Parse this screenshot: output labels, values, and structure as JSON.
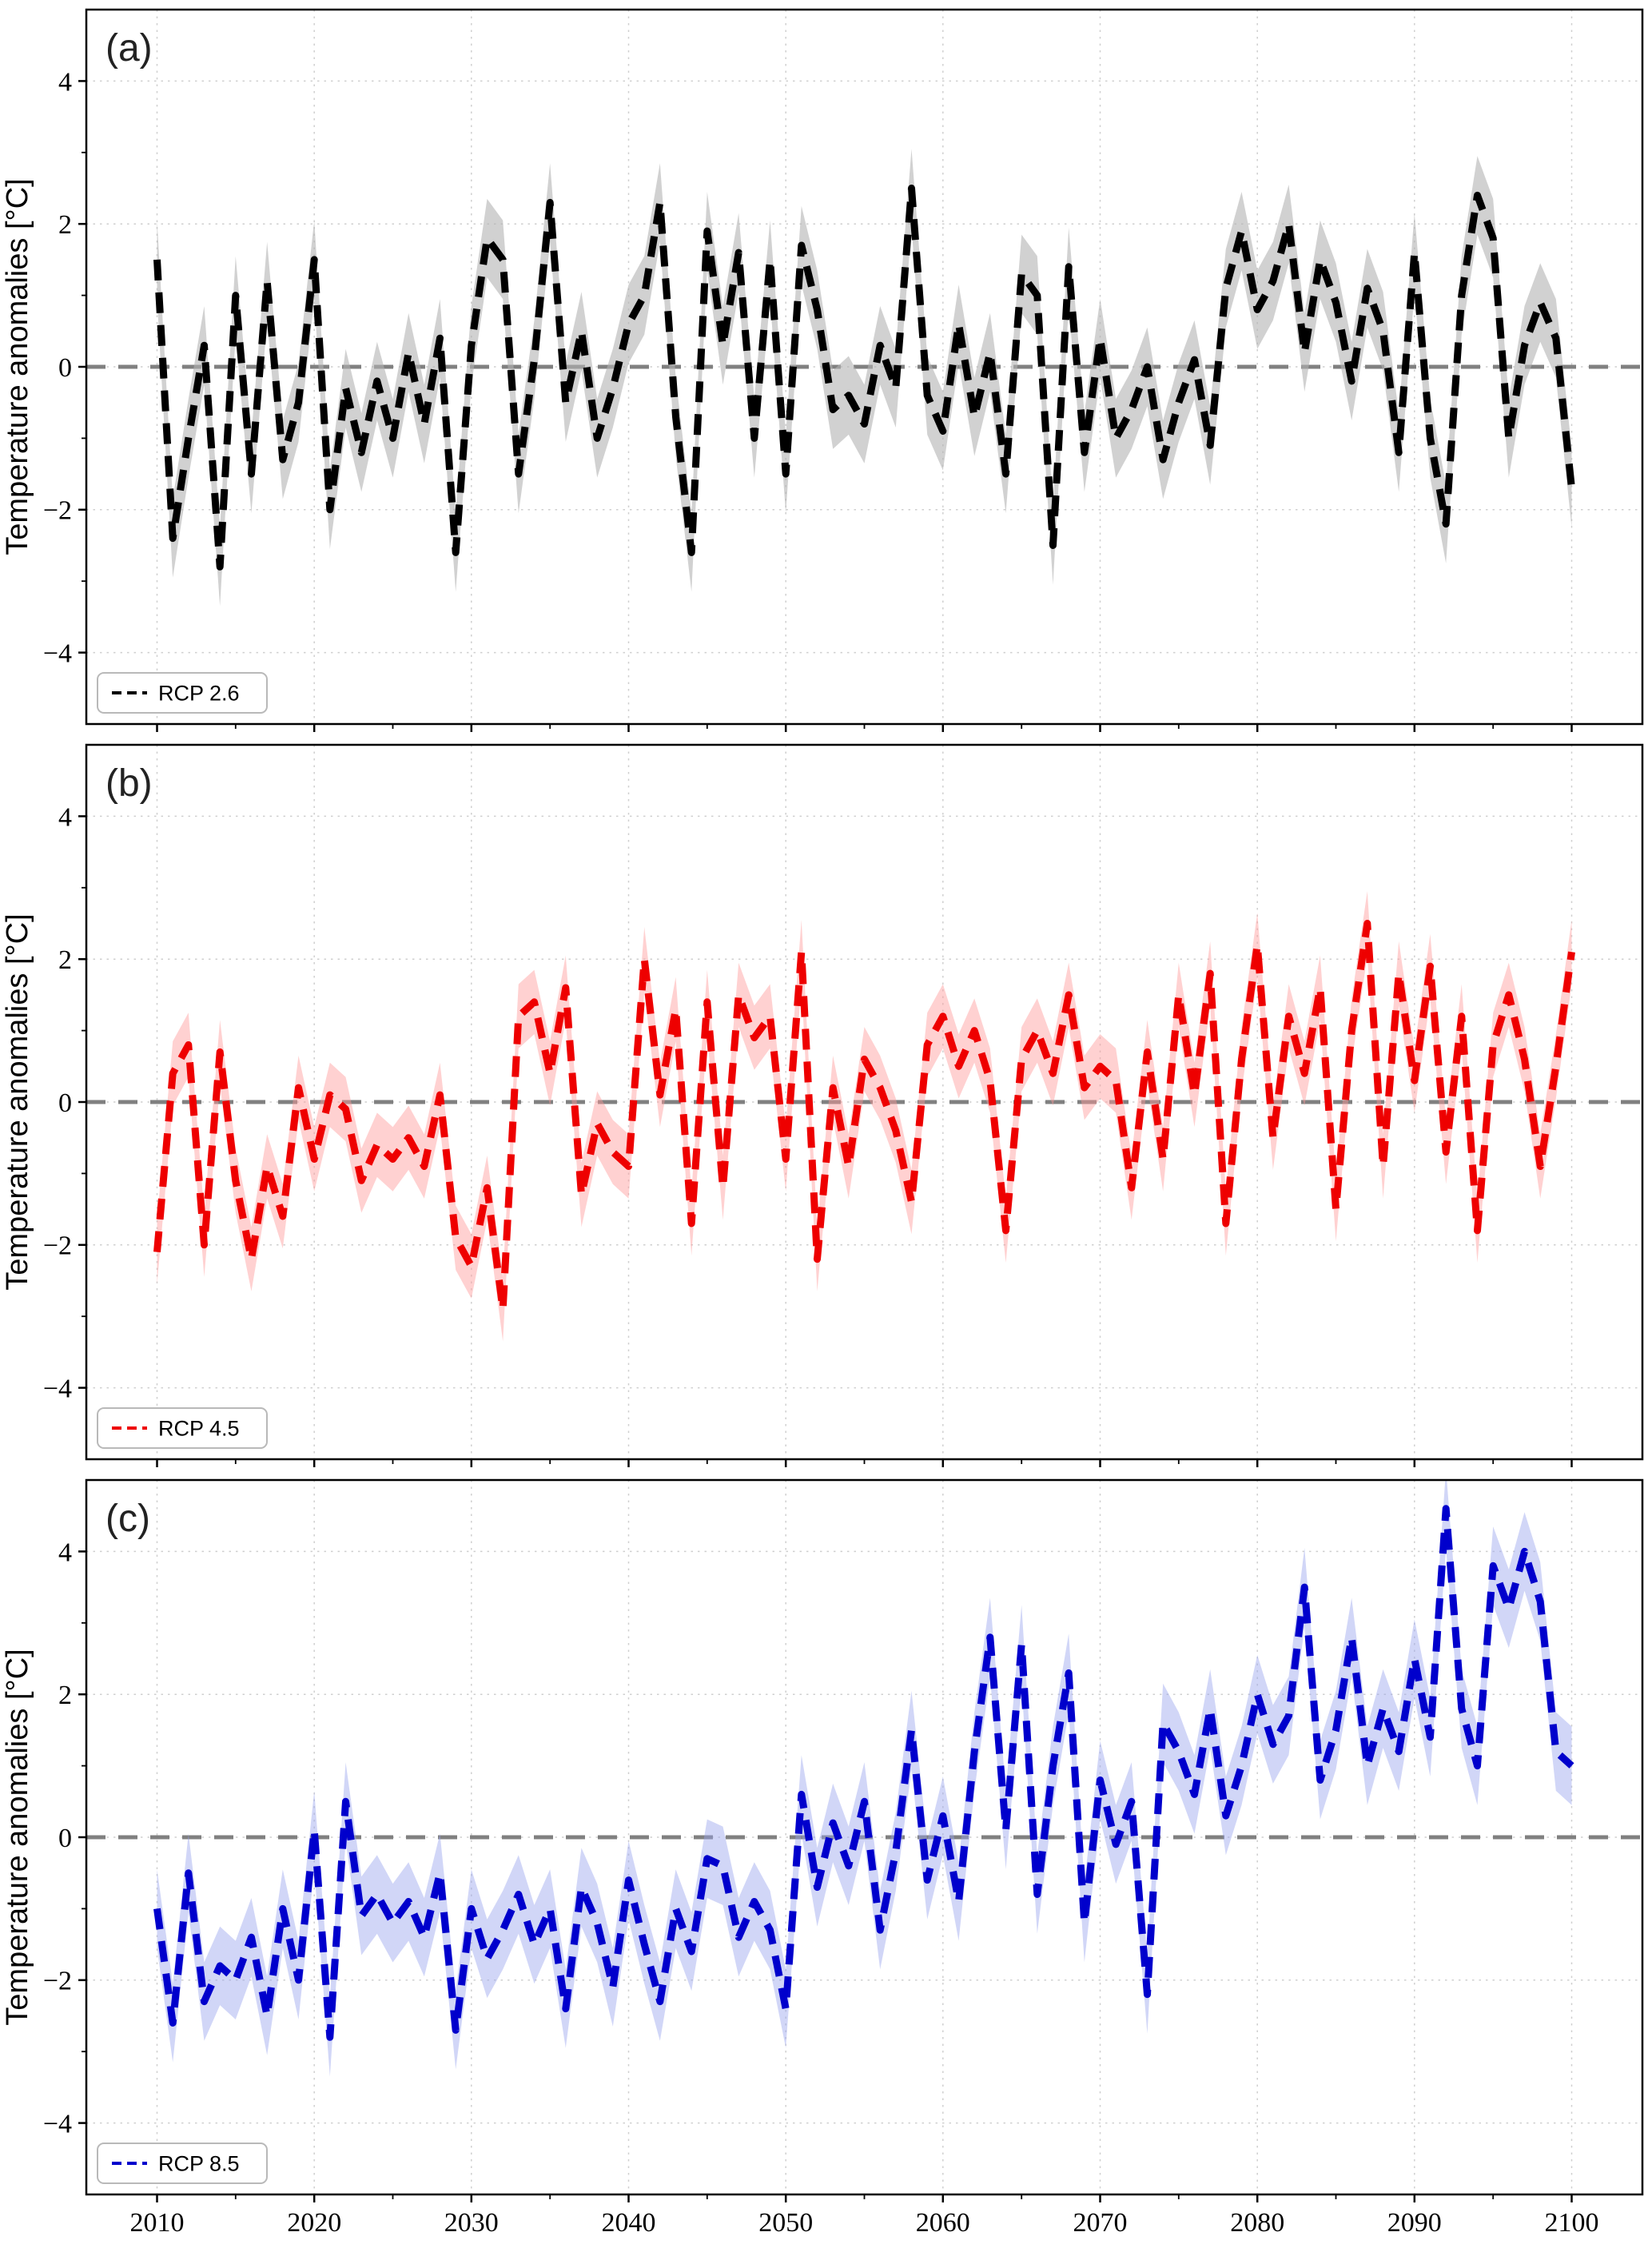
{
  "figure": {
    "background": "#ffffff"
  },
  "chart_data": [
    {
      "id": "a",
      "type": "line",
      "panel_label": "(a)",
      "legend": "RCP 2.6",
      "ylabel": "Temperature anomalies [°C]",
      "line_color": "#000000",
      "band_color": "#b3b3b3",
      "band_opacity": 0.6,
      "band_halfwidth": 0.55,
      "zero_line_color": "#808080",
      "grid": true,
      "legend_position": "lower-left",
      "xlim": [
        2005.5,
        2104.5
      ],
      "ylim": [
        -5,
        5
      ],
      "xticks": [
        2010,
        2020,
        2030,
        2040,
        2050,
        2060,
        2070,
        2080,
        2090,
        2100
      ],
      "yticks": [
        -4,
        -2,
        0,
        2,
        4
      ],
      "show_xticklabels": false,
      "x_start": 2010,
      "x_step": 1,
      "values": [
        1.5,
        -2.4,
        -1.0,
        0.3,
        -2.8,
        1.0,
        -1.5,
        1.2,
        -1.3,
        -0.5,
        1.5,
        -2.0,
        -0.3,
        -1.2,
        -0.2,
        -1.0,
        0.2,
        -0.8,
        0.4,
        -2.6,
        0.3,
        1.8,
        1.5,
        -1.5,
        0.1,
        2.3,
        -0.5,
        0.5,
        -1.0,
        -0.3,
        0.6,
        1.0,
        2.3,
        -0.7,
        -2.6,
        1.9,
        0.3,
        1.6,
        -1.0,
        1.5,
        -1.5,
        1.7,
        0.8,
        -0.6,
        -0.4,
        -0.8,
        0.3,
        -0.3,
        2.5,
        -0.4,
        -0.9,
        0.6,
        -0.7,
        0.2,
        -1.5,
        1.3,
        1.0,
        -2.5,
        1.4,
        -1.2,
        0.4,
        -1.0,
        -0.6,
        0.0,
        -1.3,
        -0.5,
        0.1,
        -1.1,
        1.1,
        1.9,
        0.8,
        1.2,
        2.0,
        0.2,
        1.5,
        0.9,
        -0.2,
        1.1,
        0.5,
        -1.2,
        1.6,
        -1.0,
        -2.2,
        1.0,
        2.4,
        1.8,
        -1.0,
        0.3,
        0.9,
        0.4,
        -1.7
      ]
    },
    {
      "id": "b",
      "type": "line",
      "panel_label": "(b)",
      "legend": "RCP 4.5",
      "ylabel": "Temperature anomalies [°C]",
      "line_color": "#ee0000",
      "band_color": "#ff9999",
      "band_opacity": 0.45,
      "band_halfwidth": 0.45,
      "zero_line_color": "#808080",
      "grid": true,
      "legend_position": "lower-left",
      "xlim": [
        2005.5,
        2104.5
      ],
      "ylim": [
        -5,
        5
      ],
      "xticks": [
        2010,
        2020,
        2030,
        2040,
        2050,
        2060,
        2070,
        2080,
        2090,
        2100
      ],
      "yticks": [
        -4,
        -2,
        0,
        2,
        4
      ],
      "show_xticklabels": false,
      "x_start": 2010,
      "x_step": 1,
      "values": [
        -2.1,
        0.4,
        0.8,
        -2.0,
        0.7,
        -1.1,
        -2.2,
        -0.9,
        -1.6,
        0.2,
        -0.8,
        0.1,
        -0.1,
        -1.1,
        -0.6,
        -0.8,
        -0.5,
        -0.9,
        0.1,
        -1.9,
        -2.3,
        -1.2,
        -2.9,
        1.2,
        1.4,
        0.4,
        1.6,
        -1.3,
        -0.3,
        -0.7,
        -0.9,
        2.0,
        0.1,
        1.3,
        -1.7,
        1.4,
        -1.2,
        1.5,
        0.9,
        1.2,
        -0.8,
        2.1,
        -2.2,
        0.2,
        -0.9,
        0.6,
        0.2,
        -0.4,
        -1.4,
        0.8,
        1.2,
        0.5,
        1.0,
        0.3,
        -1.8,
        0.6,
        1.0,
        0.4,
        1.5,
        0.2,
        0.5,
        0.3,
        -1.2,
        0.7,
        -0.8,
        1.5,
        0.1,
        1.8,
        -1.7,
        0.6,
        2.2,
        -0.5,
        1.2,
        0.4,
        1.6,
        -1.5,
        1.0,
        2.5,
        -0.9,
        1.8,
        0.3,
        1.9,
        -0.7,
        1.2,
        -1.8,
        0.8,
        1.5,
        0.6,
        -0.9,
        0.5,
        2.1
      ]
    },
    {
      "id": "c",
      "type": "line",
      "panel_label": "(c)",
      "legend": "RCP 8.5",
      "ylabel": "Temperature anomalies [°C]",
      "line_color": "#0000cc",
      "band_color": "#99a3ee",
      "band_opacity": 0.45,
      "band_halfwidth": 0.55,
      "zero_line_color": "#808080",
      "grid": true,
      "legend_position": "lower-left",
      "xlim": [
        2005.5,
        2104.5
      ],
      "ylim": [
        -5,
        5
      ],
      "xticks": [
        2010,
        2020,
        2030,
        2040,
        2050,
        2060,
        2070,
        2080,
        2090,
        2100
      ],
      "yticks": [
        -4,
        -2,
        0,
        2,
        4
      ],
      "show_xticklabels": true,
      "x_start": 2010,
      "x_step": 1,
      "values": [
        -1.0,
        -2.6,
        -0.5,
        -2.3,
        -1.8,
        -2.0,
        -1.4,
        -2.5,
        -1.0,
        -2.0,
        0.1,
        -2.8,
        0.5,
        -1.1,
        -0.8,
        -1.2,
        -0.9,
        -1.4,
        -0.5,
        -2.7,
        -1.0,
        -1.7,
        -1.3,
        -0.8,
        -1.5,
        -1.0,
        -2.4,
        -0.7,
        -1.2,
        -2.1,
        -0.6,
        -1.5,
        -2.3,
        -1.0,
        -1.6,
        -0.3,
        -0.4,
        -1.4,
        -0.9,
        -1.3,
        -2.4,
        0.6,
        -0.7,
        0.2,
        -0.4,
        0.5,
        -1.3,
        -0.2,
        1.5,
        -0.6,
        0.3,
        -0.9,
        1.2,
        2.8,
        0.1,
        2.7,
        -0.8,
        1.0,
        2.3,
        -1.2,
        0.8,
        -0.1,
        0.5,
        -2.2,
        1.6,
        1.2,
        0.6,
        1.8,
        0.3,
        1.0,
        2.0,
        1.3,
        1.7,
        3.5,
        0.8,
        1.5,
        2.8,
        1.0,
        1.8,
        1.2,
        2.5,
        1.4,
        4.6,
        1.8,
        1.0,
        3.8,
        3.2,
        4.0,
        3.3,
        1.2,
        1.0
      ]
    }
  ]
}
